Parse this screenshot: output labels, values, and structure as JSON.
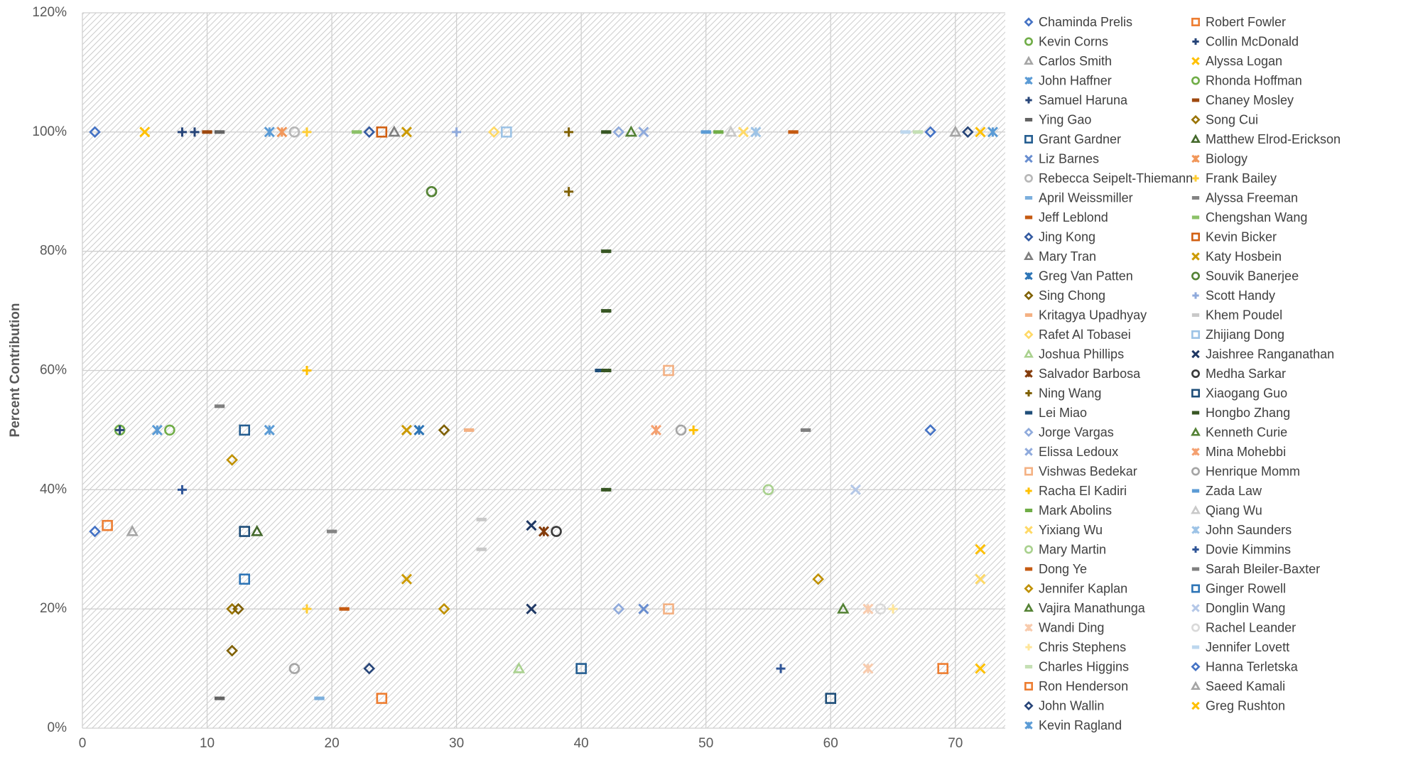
{
  "chart_data": {
    "type": "scatter",
    "y_label": "Percent Contribution",
    "xlim": [
      0,
      74
    ],
    "xticks": [
      0,
      10,
      20,
      30,
      40,
      50,
      60,
      70
    ],
    "ylim": [
      0,
      120
    ],
    "yticks": [
      {
        "value": 0,
        "label": "0%"
      },
      {
        "value": 20,
        "label": "20%"
      },
      {
        "value": 40,
        "label": "40%"
      },
      {
        "value": 60,
        "label": "60%"
      },
      {
        "value": 80,
        "label": "80%"
      },
      {
        "value": 100,
        "label": "100%"
      },
      {
        "value": 120,
        "label": "120%"
      }
    ],
    "grid": true,
    "series": [
      {
        "name": "Chaminda Prelis",
        "color": "#4472c4",
        "marker": "diamond",
        "x": [
          1,
          1
        ],
        "values": [
          100,
          33
        ]
      },
      {
        "name": "Robert Fowler",
        "color": "#ed7d31",
        "marker": "square",
        "x": [
          2
        ],
        "values": [
          34
        ]
      },
      {
        "name": "Kevin Corns",
        "color": "#70ad47",
        "marker": "circle",
        "x": [
          3
        ],
        "values": [
          50
        ]
      },
      {
        "name": "Collin McDonald",
        "color": "#264478",
        "marker": "plus",
        "x": [
          8,
          3
        ],
        "values": [
          100,
          50
        ]
      },
      {
        "name": "Carlos Smith",
        "color": "#a5a5a5",
        "marker": "triangle",
        "x": [
          4
        ],
        "values": [
          33
        ]
      },
      {
        "name": "Alyssa Logan",
        "color": "#ffc000",
        "marker": "x",
        "x": [
          5,
          72
        ],
        "values": [
          100,
          30
        ]
      },
      {
        "name": "John Haffner",
        "color": "#5b9bd5",
        "marker": "asterisk",
        "x": [
          15,
          6
        ],
        "values": [
          100,
          50
        ]
      },
      {
        "name": "Rhonda Hoffman",
        "color": "#70ad47",
        "marker": "circle",
        "x": [
          7,
          28
        ],
        "values": [
          50,
          90
        ]
      },
      {
        "name": "Samuel Haruna",
        "color": "#264478",
        "marker": "plus",
        "x": [
          9
        ],
        "values": [
          100
        ]
      },
      {
        "name": "Chaney Mosley",
        "color": "#9e480e",
        "marker": "dash",
        "x": [
          10
        ],
        "values": [
          100
        ]
      },
      {
        "name": "Ying Gao",
        "color": "#636363",
        "marker": "dash",
        "x": [
          11,
          11
        ],
        "values": [
          100,
          5
        ]
      },
      {
        "name": "Song Cui",
        "color": "#997300",
        "marker": "diamond",
        "x": [
          12
        ],
        "values": [
          20
        ]
      },
      {
        "name": "Grant Gardner",
        "color": "#255e91",
        "marker": "square",
        "x": [
          13,
          40
        ],
        "values": [
          50,
          10
        ]
      },
      {
        "name": "Matthew Elrod-Erickson",
        "color": "#43682b",
        "marker": "triangle",
        "x": [
          14
        ],
        "values": [
          33
        ]
      },
      {
        "name": "Liz Barnes",
        "color": "#698ed0",
        "marker": "x",
        "x": [
          45
        ],
        "values": [
          20
        ]
      },
      {
        "name": "Biology",
        "color": "#f1975a",
        "marker": "asterisk",
        "x": [
          16
        ],
        "values": [
          100
        ]
      },
      {
        "name": "Rebecca Seipelt-Thiemann",
        "color": "#b7b7b7",
        "marker": "circle",
        "x": [
          17
        ],
        "values": [
          100
        ]
      },
      {
        "name": "Frank Bailey",
        "color": "#ffcd33",
        "marker": "plus",
        "x": [
          18,
          18
        ],
        "values": [
          100,
          20
        ]
      },
      {
        "name": "April Weissmiller",
        "color": "#7cafdd",
        "marker": "dash",
        "x": [
          19
        ],
        "values": [
          5
        ]
      },
      {
        "name": "Alyssa Freeman",
        "color": "#848484",
        "marker": "dash",
        "x": [
          20
        ],
        "values": [
          33
        ]
      },
      {
        "name": "Jeff Leblond",
        "color": "#c55a11",
        "marker": "dash",
        "x": [
          21
        ],
        "values": [
          20
        ]
      },
      {
        "name": "Chengshan Wang",
        "color": "#8cc168",
        "marker": "dash",
        "x": [
          22
        ],
        "values": [
          100
        ]
      },
      {
        "name": "Jing Kong",
        "color": "#335aa1",
        "marker": "diamond",
        "x": [
          23
        ],
        "values": [
          100
        ]
      },
      {
        "name": "Kevin Bicker",
        "color": "#d26012",
        "marker": "square",
        "x": [
          24
        ],
        "values": [
          100
        ]
      },
      {
        "name": "Mary Tran",
        "color": "#7f7f7f",
        "marker": "triangle",
        "x": [
          25
        ],
        "values": [
          100
        ]
      },
      {
        "name": "Katy Hosbein",
        "color": "#cc9a00",
        "marker": "x",
        "x": [
          26,
          26,
          26
        ],
        "values": [
          100,
          50,
          25
        ]
      },
      {
        "name": "Greg Van Patten",
        "color": "#2e75b6",
        "marker": "asterisk",
        "x": [
          27
        ],
        "values": [
          50
        ]
      },
      {
        "name": "Souvik Banerjee",
        "color": "#548235",
        "marker": "circle",
        "x": [
          28
        ],
        "values": [
          90
        ]
      },
      {
        "name": "Sing Chong",
        "color": "#7f6000",
        "marker": "diamond",
        "x": [
          29,
          12.5,
          12
        ],
        "values": [
          50,
          20,
          13
        ]
      },
      {
        "name": "Scott Handy",
        "color": "#8faadc",
        "marker": "plus",
        "x": [
          30
        ],
        "values": [
          100
        ]
      },
      {
        "name": "Kritagya Upadhyay",
        "color": "#f4b183",
        "marker": "dash",
        "x": [
          31
        ],
        "values": [
          50
        ]
      },
      {
        "name": "Khem Poudel",
        "color": "#c9c9c9",
        "marker": "dash",
        "x": [
          32,
          32
        ],
        "values": [
          35,
          30
        ]
      },
      {
        "name": "Rafet Al Tobasei",
        "color": "#ffd966",
        "marker": "diamond",
        "x": [
          33
        ],
        "values": [
          100
        ]
      },
      {
        "name": "Zhijiang Dong",
        "color": "#9dc3e6",
        "marker": "square",
        "x": [
          34
        ],
        "values": [
          100
        ]
      },
      {
        "name": "Joshua Phillips",
        "color": "#a9d18e",
        "marker": "triangle",
        "x": [
          35
        ],
        "values": [
          10
        ]
      },
      {
        "name": "Jaishree Ranganathan",
        "color": "#1f3864",
        "marker": "x",
        "x": [
          36,
          36
        ],
        "values": [
          34,
          20
        ]
      },
      {
        "name": "Salvador Barbosa",
        "color": "#843c0c",
        "marker": "asterisk",
        "x": [
          37
        ],
        "values": [
          33
        ]
      },
      {
        "name": "Medha Sarkar",
        "color": "#3a3a3a",
        "marker": "circle",
        "x": [
          38
        ],
        "values": [
          33
        ]
      },
      {
        "name": "Ning Wang",
        "color": "#7f6000",
        "marker": "plus",
        "x": [
          39,
          39
        ],
        "values": [
          100,
          90
        ]
      },
      {
        "name": "Xiaogang Guo",
        "color": "#1f4e79",
        "marker": "square",
        "x": [
          13,
          60
        ],
        "values": [
          33,
          5
        ]
      },
      {
        "name": "Lei Miao",
        "color": "#1f4e79",
        "marker": "dash",
        "x": [
          41.5
        ],
        "values": [
          60
        ]
      },
      {
        "name": "Hongbo Zhang",
        "color": "#375623",
        "marker": "dash",
        "x": [
          42,
          42,
          42,
          42,
          42
        ],
        "values": [
          100,
          80,
          70,
          60,
          40
        ]
      },
      {
        "name": "Jorge Vargas",
        "color": "#8faadc",
        "marker": "diamond",
        "x": [
          43,
          43
        ],
        "values": [
          100,
          20
        ]
      },
      {
        "name": "Kenneth Curie",
        "color": "#548235",
        "marker": "triangle",
        "x": [
          44
        ],
        "values": [
          100
        ]
      },
      {
        "name": "Elissa Ledoux",
        "color": "#8faadc",
        "marker": "x",
        "x": [
          45
        ],
        "values": [
          100
        ]
      },
      {
        "name": "Mina Mohebbi",
        "color": "#f4a070",
        "marker": "asterisk",
        "x": [
          46
        ],
        "values": [
          50
        ]
      },
      {
        "name": "Vishwas Bedekar",
        "color": "#f4b183",
        "marker": "square",
        "x": [
          47,
          47
        ],
        "values": [
          60,
          20
        ]
      },
      {
        "name": "Henrique Momm",
        "color": "#a5a5a5",
        "marker": "circle",
        "x": [
          48,
          17
        ],
        "values": [
          50,
          10
        ]
      },
      {
        "name": "Racha El Kadiri",
        "color": "#ffc000",
        "marker": "plus",
        "x": [
          49,
          18
        ],
        "values": [
          50,
          60
        ]
      },
      {
        "name": "Zada Law",
        "color": "#5b9bd5",
        "marker": "dash",
        "x": [
          50
        ],
        "values": [
          100
        ]
      },
      {
        "name": "Mark Abolins",
        "color": "#70ad47",
        "marker": "dash",
        "x": [
          51
        ],
        "values": [
          100
        ]
      },
      {
        "name": "Qiang Wu",
        "color": "#c9c9c9",
        "marker": "triangle",
        "x": [
          52
        ],
        "values": [
          100
        ]
      },
      {
        "name": "Yixiang Wu",
        "color": "#ffd966",
        "marker": "x",
        "x": [
          53,
          72
        ],
        "values": [
          100,
          25
        ]
      },
      {
        "name": "John Saunders",
        "color": "#9dc3e6",
        "marker": "asterisk",
        "x": [
          54
        ],
        "values": [
          100
        ]
      },
      {
        "name": "Mary Martin",
        "color": "#a9d18e",
        "marker": "circle",
        "x": [
          55
        ],
        "values": [
          40
        ]
      },
      {
        "name": "Dovie Kimmins",
        "color": "#2f5597",
        "marker": "plus",
        "x": [
          8,
          56
        ],
        "values": [
          40,
          10
        ]
      },
      {
        "name": "Dong Ye",
        "color": "#c55a11",
        "marker": "dash",
        "x": [
          57
        ],
        "values": [
          100
        ]
      },
      {
        "name": "Sarah Bleiler-Baxter",
        "color": "#7f7f7f",
        "marker": "dash",
        "x": [
          11,
          58
        ],
        "values": [
          54,
          50
        ]
      },
      {
        "name": "Jennifer Kaplan",
        "color": "#bf9000",
        "marker": "diamond",
        "x": [
          12,
          29,
          59
        ],
        "values": [
          45,
          20,
          25
        ]
      },
      {
        "name": "Ginger Rowell",
        "color": "#2e75b6",
        "marker": "square",
        "x": [
          13
        ],
        "values": [
          25
        ]
      },
      {
        "name": "Vajira Manathunga",
        "color": "#548235",
        "marker": "triangle",
        "x": [
          61
        ],
        "values": [
          20
        ]
      },
      {
        "name": "Donglin Wang",
        "color": "#b4c7e7",
        "marker": "x",
        "x": [
          62
        ],
        "values": [
          40
        ]
      },
      {
        "name": "Wandi Ding",
        "color": "#f8cbad",
        "marker": "asterisk",
        "x": [
          63,
          63
        ],
        "values": [
          20,
          10
        ]
      },
      {
        "name": "Rachel Leander",
        "color": "#d9d9d9",
        "marker": "circle",
        "x": [
          64
        ],
        "values": [
          20
        ]
      },
      {
        "name": "Chris Stephens",
        "color": "#ffe699",
        "marker": "plus",
        "x": [
          65
        ],
        "values": [
          20
        ]
      },
      {
        "name": "Jennifer Lovett",
        "color": "#bdd7ee",
        "marker": "dash",
        "x": [
          66
        ],
        "values": [
          100
        ]
      },
      {
        "name": "Charles Higgins",
        "color": "#c5e0b4",
        "marker": "dash",
        "x": [
          67
        ],
        "values": [
          100
        ]
      },
      {
        "name": "Hanna Terletska",
        "color": "#4472c4",
        "marker": "diamond",
        "x": [
          68,
          68
        ],
        "values": [
          100,
          50
        ]
      },
      {
        "name": "Ron Henderson",
        "color": "#ed7d31",
        "marker": "square",
        "x": [
          69,
          24
        ],
        "values": [
          10,
          5
        ]
      },
      {
        "name": "Saeed Kamali",
        "color": "#a5a5a5",
        "marker": "triangle",
        "x": [
          70
        ],
        "values": [
          100
        ]
      },
      {
        "name": "John Wallin",
        "color": "#264478",
        "marker": "diamond",
        "x": [
          71,
          23
        ],
        "values": [
          100,
          10
        ]
      },
      {
        "name": "Greg Rushton",
        "color": "#ffc000",
        "marker": "x",
        "x": [
          72,
          72
        ],
        "values": [
          100,
          10
        ]
      },
      {
        "name": "Kevin Ragland",
        "color": "#5b9bd5",
        "marker": "asterisk",
        "x": [
          73,
          15
        ],
        "values": [
          100,
          50
        ]
      }
    ]
  }
}
